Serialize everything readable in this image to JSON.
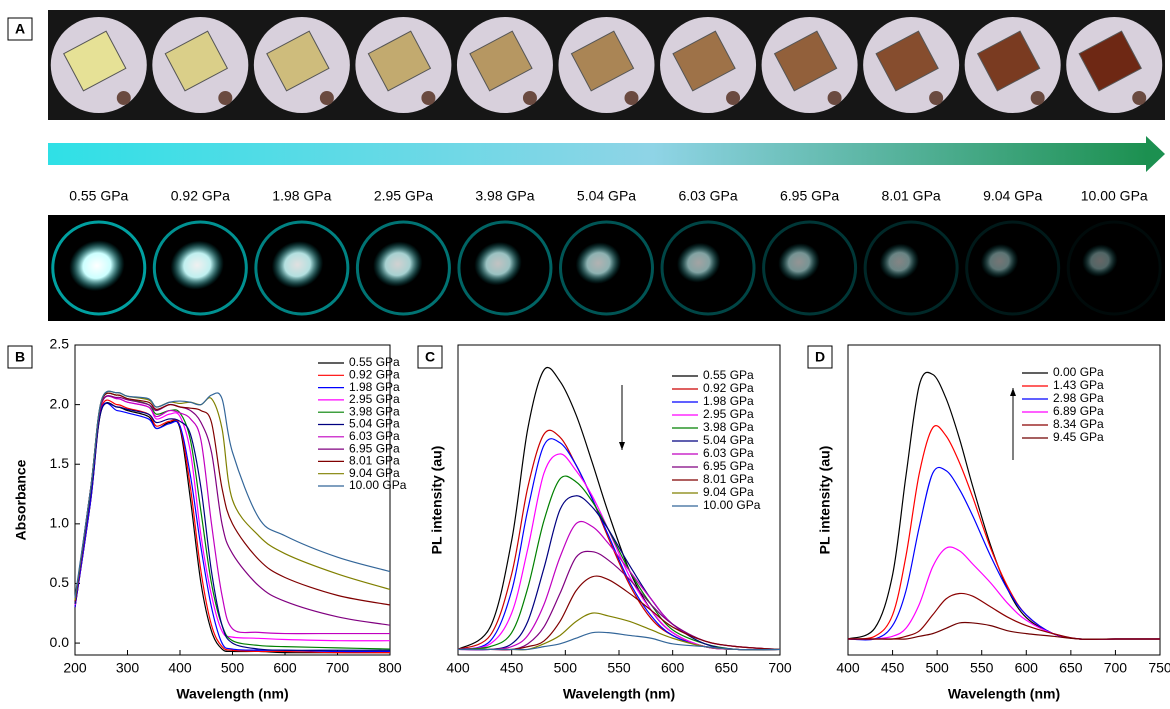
{
  "panel_a": {
    "label": "A",
    "pressures": [
      "0.55 GPa",
      "0.92 GPa",
      "1.98 GPa",
      "2.95 GPa",
      "3.98 GPa",
      "5.04 GPa",
      "6.03 GPa",
      "6.95 GPa",
      "8.01 GPa",
      "9.04 GPa",
      "10.00 GPa"
    ]
  },
  "chart_data": [
    {
      "type": "line",
      "label": "B",
      "x_label": "Wavelength (nm)",
      "y_label": "Absorbance",
      "x": [
        200,
        230,
        250,
        280,
        300,
        340,
        355,
        380,
        400,
        420,
        440,
        460,
        480,
        500,
        550,
        600,
        700,
        800
      ],
      "xlim": [
        200,
        800
      ],
      "xticks": [
        200,
        300,
        400,
        500,
        600,
        700,
        800
      ],
      "ylim": [
        -0.1,
        2.5
      ],
      "yticks": [
        {
          "value": 0,
          "label": "0.0"
        },
        0.5,
        {
          "value": 1,
          "label": "1.0"
        },
        1.5,
        {
          "value": 2,
          "label": "2.0"
        },
        2.5
      ],
      "series": [
        {
          "name": "0.55 GPa",
          "color": "#000000",
          "values": [
            0.3,
            1.2,
            1.95,
            1.98,
            1.95,
            1.9,
            1.8,
            1.85,
            1.8,
            1.2,
            0.5,
            0.1,
            -0.05,
            -0.07,
            -0.07,
            -0.08,
            -0.08,
            -0.08
          ]
        },
        {
          "name": "0.92 GPa",
          "color": "#ff0000",
          "values": [
            0.3,
            1.2,
            1.97,
            2.0,
            1.97,
            1.92,
            1.82,
            1.86,
            1.82,
            1.3,
            0.6,
            0.15,
            -0.03,
            -0.06,
            -0.07,
            -0.07,
            -0.08,
            -0.08
          ]
        },
        {
          "name": "1.98 GPa",
          "color": "#0000ff",
          "values": [
            0.3,
            1.2,
            1.96,
            1.95,
            1.93,
            1.88,
            1.8,
            1.84,
            1.82,
            1.4,
            0.8,
            0.3,
            0.0,
            -0.05,
            -0.06,
            -0.06,
            -0.07,
            -0.07
          ]
        },
        {
          "name": "2.95 GPa",
          "color": "#ff00ff",
          "values": [
            0.32,
            1.25,
            2.0,
            2.05,
            2.02,
            1.98,
            1.88,
            1.92,
            1.9,
            1.6,
            0.9,
            0.4,
            0.1,
            0.05,
            0.04,
            0.03,
            0.02,
            0.02
          ]
        },
        {
          "name": "3.98 GPa",
          "color": "#008000",
          "values": [
            0.33,
            1.3,
            2.02,
            2.08,
            2.05,
            2.0,
            1.92,
            1.95,
            1.93,
            1.7,
            1.1,
            0.5,
            0.15,
            0.02,
            -0.02,
            -0.03,
            -0.04,
            -0.05
          ]
        },
        {
          "name": "5.04 GPa",
          "color": "#000080",
          "values": [
            0.33,
            1.25,
            1.95,
            1.98,
            1.96,
            1.92,
            1.85,
            1.88,
            1.86,
            1.75,
            1.3,
            0.6,
            0.15,
            0.0,
            -0.05,
            -0.06,
            -0.06,
            -0.06
          ]
        },
        {
          "name": "6.03 GPa",
          "color": "#c000c0",
          "values": [
            0.35,
            1.3,
            2.0,
            2.05,
            2.02,
            1.98,
            1.9,
            1.95,
            1.93,
            1.88,
            1.7,
            1.0,
            0.4,
            0.12,
            0.09,
            0.08,
            0.08,
            0.08
          ]
        },
        {
          "name": "6.95 GPa",
          "color": "#800080",
          "values": [
            0.35,
            1.3,
            2.0,
            2.06,
            2.04,
            2.0,
            1.95,
            2.0,
            1.98,
            1.95,
            1.85,
            1.6,
            1.0,
            0.75,
            0.48,
            0.35,
            0.22,
            0.15
          ]
        },
        {
          "name": "8.01 GPa",
          "color": "#800000",
          "values": [
            0.35,
            1.3,
            2.02,
            2.08,
            2.05,
            2.02,
            1.96,
            2.0,
            1.98,
            1.97,
            1.95,
            1.85,
            1.3,
            1.0,
            0.7,
            0.55,
            0.4,
            0.32
          ]
        },
        {
          "name": "9.04 GPa",
          "color": "#808000",
          "values": [
            0.36,
            1.3,
            2.03,
            2.1,
            2.07,
            2.04,
            1.98,
            2.02,
            2.01,
            2.02,
            2.0,
            2.05,
            1.8,
            1.2,
            0.9,
            0.75,
            0.58,
            0.45
          ]
        },
        {
          "name": "10.00 GPa",
          "color": "#336699",
          "values": [
            0.38,
            1.3,
            2.03,
            2.1,
            2.07,
            2.05,
            1.98,
            2.02,
            2.03,
            2.02,
            2.0,
            2.08,
            2.05,
            1.6,
            1.05,
            0.9,
            0.72,
            0.6
          ]
        }
      ]
    },
    {
      "type": "line",
      "label": "C",
      "x_label": "Wavelength (nm)",
      "y_label": "PL intensity (au)",
      "x": [
        400,
        430,
        450,
        465,
        480,
        495,
        510,
        525,
        540,
        560,
        580,
        600,
        630,
        660,
        700
      ],
      "xlim": [
        400,
        700
      ],
      "xticks": [
        400,
        450,
        500,
        550,
        600,
        650,
        700
      ],
      "ylim": [
        -0.02,
        1.09
      ],
      "series": [
        {
          "name": "0.55 GPa",
          "color": "#000000",
          "values": [
            0,
            0.08,
            0.39,
            0.79,
            1.0,
            0.96,
            0.84,
            0.67,
            0.49,
            0.28,
            0.14,
            0.06,
            0.01,
            0,
            0
          ]
        },
        {
          "name": "0.92 GPa",
          "color": "#cc0000",
          "values": [
            0,
            0.05,
            0.27,
            0.58,
            0.77,
            0.76,
            0.66,
            0.54,
            0.4,
            0.23,
            0.11,
            0.05,
            0.01,
            0,
            0
          ]
        },
        {
          "name": "1.98 GPa",
          "color": "#0000ff",
          "values": [
            0,
            0.03,
            0.21,
            0.5,
            0.73,
            0.74,
            0.66,
            0.54,
            0.41,
            0.24,
            0.12,
            0.05,
            0.01,
            0,
            0
          ]
        },
        {
          "name": "2.95 GPa",
          "color": "#ff00ff",
          "values": [
            0,
            0.02,
            0.13,
            0.36,
            0.63,
            0.7,
            0.64,
            0.55,
            0.43,
            0.26,
            0.14,
            0.06,
            0.01,
            0,
            0
          ]
        },
        {
          "name": "3.98 GPa",
          "color": "#008000",
          "values": [
            0,
            0.01,
            0.06,
            0.22,
            0.46,
            0.61,
            0.6,
            0.53,
            0.43,
            0.28,
            0.16,
            0.07,
            0.02,
            0,
            0
          ]
        },
        {
          "name": "5.04 GPa",
          "color": "#000080",
          "values": [
            0,
            0,
            0.02,
            0.1,
            0.29,
            0.5,
            0.55,
            0.51,
            0.43,
            0.3,
            0.18,
            0.09,
            0.02,
            0,
            0
          ]
        },
        {
          "name": "6.03 GPa",
          "color": "#c000c0",
          "values": [
            0,
            0,
            0.01,
            0.05,
            0.16,
            0.33,
            0.45,
            0.44,
            0.38,
            0.28,
            0.18,
            0.09,
            0.03,
            0.01,
            0
          ]
        },
        {
          "name": "6.95 GPa",
          "color": "#800080",
          "values": [
            0,
            0,
            0,
            0.02,
            0.08,
            0.2,
            0.33,
            0.35,
            0.32,
            0.25,
            0.16,
            0.09,
            0.03,
            0.01,
            0
          ]
        },
        {
          "name": "8.01 GPa",
          "color": "#800000",
          "values": [
            0,
            0,
            0,
            0.01,
            0.03,
            0.1,
            0.21,
            0.26,
            0.25,
            0.2,
            0.14,
            0.08,
            0.03,
            0.01,
            0
          ]
        },
        {
          "name": "9.04 GPa",
          "color": "#808000",
          "values": [
            0,
            0,
            0,
            0,
            0.02,
            0.05,
            0.1,
            0.13,
            0.12,
            0.1,
            0.07,
            0.04,
            0.01,
            0,
            0
          ]
        },
        {
          "name": "10.00 GPa",
          "color": "#336699",
          "values": [
            0,
            0,
            0,
            0,
            0.01,
            0.02,
            0.04,
            0.06,
            0.06,
            0.05,
            0.04,
            0.02,
            0.01,
            0,
            0
          ]
        }
      ]
    },
    {
      "type": "line",
      "label": "D",
      "x_label": "Wavelength (nm)",
      "y_label": "PL intensity (au)",
      "x": [
        400,
        430,
        450,
        465,
        480,
        495,
        510,
        525,
        540,
        560,
        580,
        600,
        630,
        660,
        700,
        750
      ],
      "xlim": [
        400,
        750
      ],
      "xticks": [
        400,
        450,
        500,
        550,
        600,
        650,
        700,
        750
      ],
      "ylim": [
        -0.06,
        1.1
      ],
      "series": [
        {
          "name": "0.00 GPa",
          "color": "#000000",
          "values": [
            0,
            0.04,
            0.24,
            0.61,
            0.95,
            0.99,
            0.9,
            0.75,
            0.57,
            0.35,
            0.18,
            0.08,
            0.02,
            0,
            0,
            0
          ]
        },
        {
          "name": "1.43 GPa",
          "color": "#ff0000",
          "values": [
            0,
            0.01,
            0.09,
            0.31,
            0.62,
            0.79,
            0.76,
            0.66,
            0.53,
            0.34,
            0.19,
            0.09,
            0.02,
            0,
            0,
            0
          ]
        },
        {
          "name": "2.98 GPa",
          "color": "#0000ff",
          "values": [
            0,
            0,
            0.05,
            0.18,
            0.42,
            0.62,
            0.63,
            0.56,
            0.46,
            0.31,
            0.18,
            0.09,
            0.02,
            0,
            0,
            0
          ]
        },
        {
          "name": "6.89 GPa",
          "color": "#ff00ff",
          "values": [
            0,
            0,
            0.01,
            0.04,
            0.13,
            0.27,
            0.34,
            0.33,
            0.28,
            0.21,
            0.13,
            0.07,
            0.02,
            0,
            0,
            0
          ]
        },
        {
          "name": "8.34 GPa",
          "color": "#8b0000",
          "values": [
            0,
            0,
            0,
            0.01,
            0.03,
            0.09,
            0.15,
            0.17,
            0.16,
            0.12,
            0.08,
            0.05,
            0.02,
            0,
            0,
            0
          ]
        },
        {
          "name": "9.45 GPa",
          "color": "#700000",
          "values": [
            0,
            0,
            0,
            0,
            0.01,
            0.02,
            0.04,
            0.06,
            0.06,
            0.05,
            0.03,
            0.02,
            0.01,
            0,
            0,
            0
          ]
        }
      ]
    }
  ]
}
